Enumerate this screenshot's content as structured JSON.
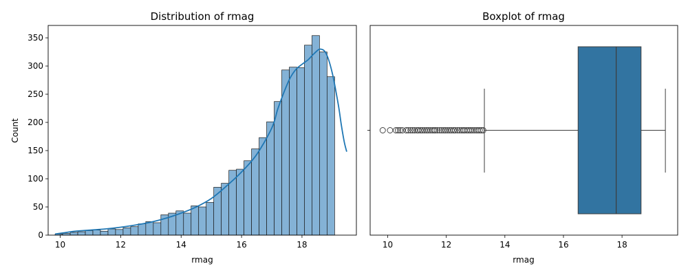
{
  "chart_data": [
    {
      "type": "histogram",
      "title": "Distribution of rmag",
      "xlabel": "rmag",
      "ylabel": "Count",
      "xlim": [
        9.6,
        19.8
      ],
      "ylim": [
        0,
        372
      ],
      "xticks": [
        10,
        12,
        14,
        16,
        18
      ],
      "yticks": [
        0,
        50,
        100,
        150,
        200,
        250,
        300,
        350
      ],
      "bar_color": "#84b2d6",
      "kde_color": "#1f77b4",
      "bins": [
        {
          "x0": 9.83,
          "x1": 10.08,
          "count": 2
        },
        {
          "x0": 10.08,
          "x1": 10.33,
          "count": 3
        },
        {
          "x0": 10.33,
          "x1": 10.58,
          "count": 5
        },
        {
          "x0": 10.58,
          "x1": 10.83,
          "count": 6
        },
        {
          "x0": 10.83,
          "x1": 11.08,
          "count": 8
        },
        {
          "x0": 11.08,
          "x1": 11.33,
          "count": 9
        },
        {
          "x0": 11.33,
          "x1": 11.58,
          "count": 7
        },
        {
          "x0": 11.58,
          "x1": 11.83,
          "count": 11
        },
        {
          "x0": 11.83,
          "x1": 12.08,
          "count": 10
        },
        {
          "x0": 12.08,
          "x1": 12.33,
          "count": 13
        },
        {
          "x0": 12.33,
          "x1": 12.58,
          "count": 15
        },
        {
          "x0": 12.58,
          "x1": 12.83,
          "count": 20
        },
        {
          "x0": 12.83,
          "x1": 13.08,
          "count": 24
        },
        {
          "x0": 13.08,
          "x1": 13.33,
          "count": 22
        },
        {
          "x0": 13.33,
          "x1": 13.58,
          "count": 36
        },
        {
          "x0": 13.58,
          "x1": 13.83,
          "count": 39
        },
        {
          "x0": 13.83,
          "x1": 14.08,
          "count": 43
        },
        {
          "x0": 14.08,
          "x1": 14.33,
          "count": 39
        },
        {
          "x0": 14.33,
          "x1": 14.58,
          "count": 52
        },
        {
          "x0": 14.58,
          "x1": 14.83,
          "count": 50
        },
        {
          "x0": 14.83,
          "x1": 15.08,
          "count": 58
        },
        {
          "x0": 15.08,
          "x1": 15.33,
          "count": 85
        },
        {
          "x0": 15.33,
          "x1": 15.58,
          "count": 92
        },
        {
          "x0": 15.58,
          "x1": 15.83,
          "count": 115
        },
        {
          "x0": 15.83,
          "x1": 16.08,
          "count": 117
        },
        {
          "x0": 16.08,
          "x1": 16.33,
          "count": 132
        },
        {
          "x0": 16.33,
          "x1": 16.58,
          "count": 153
        },
        {
          "x0": 16.58,
          "x1": 16.83,
          "count": 173
        },
        {
          "x0": 16.83,
          "x1": 17.08,
          "count": 201
        },
        {
          "x0": 17.08,
          "x1": 17.33,
          "count": 237
        },
        {
          "x0": 17.33,
          "x1": 17.58,
          "count": 293
        },
        {
          "x0": 17.58,
          "x1": 17.83,
          "count": 298
        },
        {
          "x0": 17.83,
          "x1": 18.08,
          "count": 297
        },
        {
          "x0": 18.08,
          "x1": 18.33,
          "count": 337
        },
        {
          "x0": 18.33,
          "x1": 18.58,
          "count": 354
        },
        {
          "x0": 18.58,
          "x1": 18.83,
          "count": 325
        },
        {
          "x0": 18.83,
          "x1": 19.08,
          "count": 281
        }
      ],
      "kde": {
        "x": [
          9.83,
          10.1,
          10.5,
          11.0,
          11.5,
          12.0,
          12.5,
          13.0,
          13.5,
          14.0,
          14.5,
          15.0,
          15.5,
          16.0,
          16.5,
          17.0,
          17.2,
          17.4,
          17.6,
          17.8,
          18.0,
          18.2,
          18.4,
          18.6,
          18.8,
          19.0,
          19.2,
          19.3,
          19.4,
          19.48
        ],
        "y": [
          2,
          4,
          7,
          9,
          11,
          14,
          18,
          23,
          30,
          39,
          50,
          65,
          87,
          112,
          143,
          190,
          224,
          253,
          278,
          294,
          303,
          311,
          322,
          330,
          322,
          288,
          232,
          196,
          165,
          148
        ]
      }
    },
    {
      "type": "boxplot",
      "title": "Boxplot of rmag",
      "xlabel": "rmag",
      "xlim": [
        9.4,
        19.9
      ],
      "xticks": [
        10,
        12,
        14,
        16,
        18
      ],
      "box_color": "#3274a1",
      "q1": 16.5,
      "median": 17.8,
      "q3": 18.65,
      "whisker_low": 13.3,
      "whisker_high": 19.48,
      "outliers": [
        9.83,
        10.08,
        10.28,
        10.35,
        10.42,
        10.5,
        10.63,
        10.7,
        10.78,
        10.85,
        10.92,
        11.0,
        11.05,
        11.12,
        11.18,
        11.25,
        11.32,
        11.38,
        11.45,
        11.52,
        11.58,
        11.63,
        11.7,
        11.78,
        11.85,
        11.92,
        11.98,
        12.05,
        12.12,
        12.18,
        12.25,
        12.3,
        12.38,
        12.45,
        12.52,
        12.58,
        12.63,
        12.7,
        12.76,
        12.82,
        12.88,
        12.95,
        13.02,
        13.08,
        13.14,
        13.2,
        13.26
      ]
    }
  ]
}
